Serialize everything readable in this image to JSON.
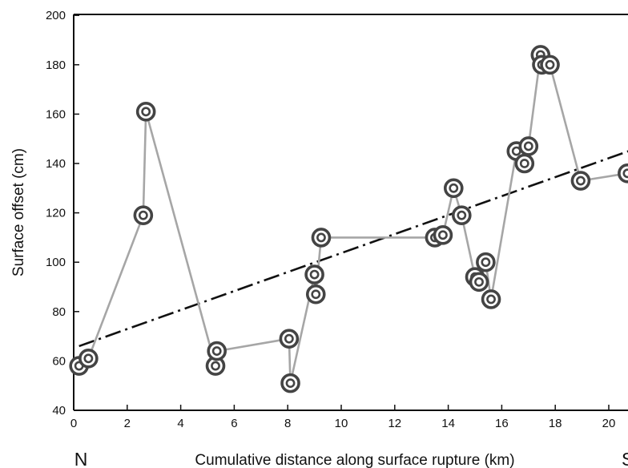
{
  "chart_data": {
    "type": "scatter",
    "xlabel": "Cumulative distance along surface rupture (km)",
    "ylabel": "Surface offset (cm)",
    "xlim": [
      0,
      21
    ],
    "ylim": [
      40,
      200
    ],
    "x_ticks": [
      "0",
      "2",
      "4",
      "6",
      "8",
      "10",
      "12",
      "14",
      "16",
      "18",
      "20"
    ],
    "y_ticks": [
      "40",
      "60",
      "80",
      "100",
      "120",
      "140",
      "160",
      "180",
      "200"
    ],
    "end_labels": {
      "left": "N",
      "right": "S"
    },
    "grid": false,
    "series": [
      {
        "style": "connected-markers",
        "line_color": "#a6a6a6",
        "marker_color": "#444444",
        "points": [
          {
            "x": 0.2,
            "y": 58
          },
          {
            "x": 0.55,
            "y": 61
          },
          {
            "x": 2.6,
            "y": 119
          },
          {
            "x": 2.7,
            "y": 161
          },
          {
            "x": 5.3,
            "y": 58
          },
          {
            "x": 5.35,
            "y": 64
          },
          {
            "x": 8.05,
            "y": 69
          },
          {
            "x": 8.1,
            "y": 51
          },
          {
            "x": 9.0,
            "y": 95
          },
          {
            "x": 9.05,
            "y": 87
          },
          {
            "x": 9.25,
            "y": 110
          },
          {
            "x": 13.5,
            "y": 110
          },
          {
            "x": 13.8,
            "y": 111
          },
          {
            "x": 14.2,
            "y": 130
          },
          {
            "x": 14.5,
            "y": 119
          },
          {
            "x": 15.0,
            "y": 94
          },
          {
            "x": 15.15,
            "y": 92
          },
          {
            "x": 15.4,
            "y": 100
          },
          {
            "x": 15.6,
            "y": 85
          },
          {
            "x": 16.55,
            "y": 145
          },
          {
            "x": 16.85,
            "y": 140
          },
          {
            "x": 17.0,
            "y": 147
          },
          {
            "x": 17.45,
            "y": 184
          },
          {
            "x": 17.5,
            "y": 180
          },
          {
            "x": 17.8,
            "y": 180
          },
          {
            "x": 18.95,
            "y": 133
          },
          {
            "x": 20.7,
            "y": 136
          }
        ]
      },
      {
        "style": "dash-dot-trend",
        "line_color": "#111111",
        "points": [
          {
            "x": 0.2,
            "y": 66
          },
          {
            "x": 21.0,
            "y": 146
          }
        ]
      }
    ]
  }
}
